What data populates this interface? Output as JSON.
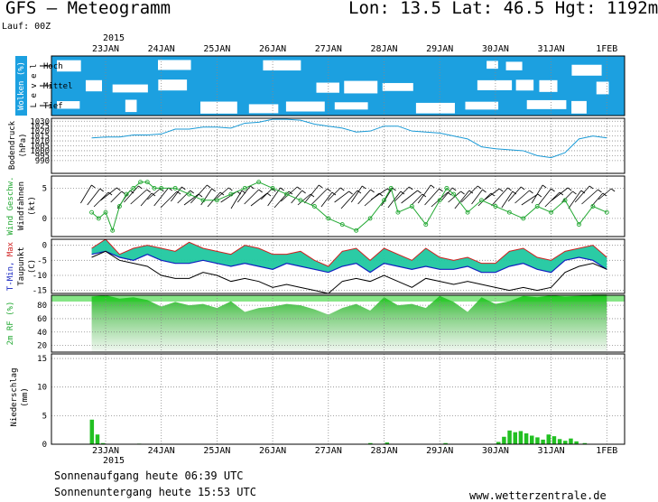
{
  "header": {
    "title": "GFS  —  Meteogramm",
    "coords": "Lon: 13.5  Lat: 46.5  Hgt: 1192m",
    "run": "Lauf: 00Z",
    "year_top": "2015",
    "year_bottom": "2015"
  },
  "footer": {
    "sunrise": "Sonnenaufgang heute 06:39 UTC",
    "sunset": "Sonnenuntergang heute 15:53 UTC",
    "credit": "www.wetterzentrale.de"
  },
  "colors": {
    "cloud_bg": "#1ca0e0",
    "pressure_line": "#1a9ad6",
    "wind_speed": "#22a832",
    "tmin": "#1020c0",
    "tmax": "#d02020",
    "dew": "#000000",
    "rh_fill": "#3cc83c",
    "precip": "#22c022"
  },
  "chart_data": [
    {
      "type": "heatmap",
      "panel": "clouds",
      "ylabel": "Wolken (%)",
      "side_label": "L e v e l",
      "levels": [
        "Hoch",
        "Mittel",
        "Tief"
      ],
      "x": [
        "23JAN",
        "24JAN",
        "25JAN",
        "26JAN",
        "27JAN",
        "28JAN",
        "29JAN",
        "30JAN",
        "31JAN",
        "1FEB"
      ]
    },
    {
      "type": "line",
      "panel": "pressure",
      "ylabel": "Bodendruck",
      "unit": "(hPa)",
      "x_days": [
        -0.25,
        0,
        0.25,
        0.5,
        0.75,
        1,
        1.25,
        1.5,
        1.75,
        2,
        2.25,
        2.5,
        2.75,
        3,
        3.25,
        3.5,
        3.75,
        4,
        4.25,
        4.5,
        4.75,
        5,
        5.25,
        5.5,
        5.75,
        6,
        6.25,
        6.5,
        6.75,
        7,
        7.25,
        7.5,
        7.75,
        8,
        8.25,
        8.5,
        8.75,
        9
      ],
      "y": [
        1013,
        1014,
        1014,
        1016,
        1016,
        1017,
        1022,
        1022,
        1024,
        1024,
        1023,
        1028,
        1029,
        1032,
        1032,
        1031,
        1027,
        1025,
        1023,
        1019,
        1020,
        1025,
        1025,
        1020,
        1019,
        1018,
        1015,
        1012,
        1004,
        1002,
        1001,
        1000,
        995,
        993,
        998,
        1012,
        1015,
        1013
      ],
      "ylim": [
        977,
        1033
      ],
      "yticks": [
        1030,
        1025,
        1020,
        1015,
        1010,
        1005,
        1000,
        995,
        990
      ]
    },
    {
      "type": "line",
      "panel": "wind",
      "ylabel": "Wind Geschw.",
      "ylabel2": "Windfahnen",
      "unit": "(kt)",
      "x_days": [
        -0.25,
        -0.125,
        0,
        0.125,
        0.25,
        0.375,
        0.5,
        0.625,
        0.75,
        0.875,
        1,
        1.25,
        1.5,
        1.75,
        2,
        2.25,
        2.5,
        2.75,
        3,
        3.25,
        3.5,
        3.75,
        4,
        4.25,
        4.5,
        4.75,
        5,
        5.125,
        5.25,
        5.5,
        5.75,
        6,
        6.125,
        6.25,
        6.5,
        6.75,
        7,
        7.25,
        7.5,
        7.75,
        8,
        8.25,
        8.5,
        8.75,
        9
      ],
      "y": [
        1,
        0,
        1,
        -2,
        2,
        4,
        5,
        6,
        6,
        5,
        5,
        5,
        4,
        3,
        3,
        4,
        5,
        6,
        5,
        4,
        3,
        2,
        0,
        -1,
        -2,
        0,
        3,
        5,
        1,
        2,
        -1,
        3,
        5,
        4,
        1,
        3,
        2,
        1,
        0,
        2,
        1,
        3,
        -1,
        2,
        1
      ],
      "ylim": [
        -3,
        7
      ],
      "yticks": [
        5,
        0
      ]
    },
    {
      "type": "area",
      "panel": "temperature",
      "ylabel": "T-Min, Max",
      "ylabel2": "Taupunkt",
      "unit": "(C)",
      "x_days": [
        -0.25,
        0,
        0.25,
        0.5,
        0.75,
        1,
        1.25,
        1.5,
        1.75,
        2,
        2.25,
        2.5,
        2.75,
        3,
        3.25,
        3.5,
        3.75,
        4,
        4.25,
        4.5,
        4.75,
        5,
        5.25,
        5.5,
        5.75,
        6,
        6.25,
        6.5,
        6.75,
        7,
        7.25,
        7.5,
        7.75,
        8,
        8.25,
        8.5,
        8.75,
        9
      ],
      "tmax": [
        -1,
        2,
        -3,
        -1,
        0,
        -1,
        -2,
        1,
        -1,
        -2,
        -3,
        0,
        -1,
        -3,
        -3,
        -2,
        -5,
        -7,
        -2,
        -1,
        -5,
        -1,
        -3,
        -5,
        -1,
        -4,
        -5,
        -4,
        -6,
        -6,
        -2,
        -1,
        -4,
        -5,
        -2,
        -1,
        0,
        -4
      ],
      "tmin": [
        -3,
        -2,
        -4,
        -5,
        -3,
        -5,
        -6,
        -6,
        -5,
        -6,
        -7,
        -6,
        -7,
        -8,
        -6,
        -7,
        -8,
        -9,
        -7,
        -6,
        -9,
        -6,
        -7,
        -8,
        -7,
        -8,
        -8,
        -7,
        -9,
        -9,
        -7,
        -6,
        -8,
        -9,
        -5,
        -4,
        -5,
        -8
      ],
      "dew": [
        -4,
        -2,
        -5,
        -6,
        -7,
        -10,
        -11,
        -11,
        -9,
        -10,
        -12,
        -11,
        -12,
        -14,
        -13,
        -14,
        -15,
        -16,
        -12,
        -11,
        -12,
        -10,
        -12,
        -14,
        -11,
        -12,
        -13,
        -12,
        -13,
        -14,
        -15,
        -14,
        -15,
        -14,
        -9,
        -7,
        -6,
        -8
      ],
      "ylim": [
        -16,
        2
      ],
      "yticks": [
        0,
        -5,
        -10,
        -15
      ]
    },
    {
      "type": "area",
      "panel": "humidity",
      "ylabel": "2m RF (%)",
      "x_days": [
        -0.25,
        0,
        0.25,
        0.5,
        0.75,
        1,
        1.25,
        1.5,
        1.75,
        2,
        2.25,
        2.5,
        2.75,
        3,
        3.25,
        3.5,
        3.75,
        4,
        4.25,
        4.5,
        4.75,
        5,
        5.25,
        5.5,
        5.75,
        6,
        6.25,
        6.5,
        6.75,
        7,
        7.25,
        7.5,
        7.75,
        8,
        8.25,
        8.5,
        8.75,
        9
      ],
      "y": [
        93,
        95,
        90,
        92,
        88,
        78,
        85,
        80,
        82,
        76,
        86,
        70,
        76,
        78,
        82,
        80,
        74,
        66,
        76,
        82,
        72,
        92,
        80,
        82,
        76,
        94,
        85,
        70,
        92,
        82,
        86,
        94,
        92,
        95,
        93,
        94,
        96,
        96
      ],
      "ylim": [
        10,
        95
      ],
      "yticks": [
        80,
        60,
        40,
        20
      ]
    },
    {
      "type": "bar",
      "panel": "precipitation",
      "ylabel": "Niederschlag",
      "unit": "(mm)",
      "x_days": [
        -0.25,
        -0.15,
        -0.05,
        0.6,
        4.75,
        5.05,
        6.1,
        7.05,
        7.15,
        7.25,
        7.35,
        7.45,
        7.55,
        7.65,
        7.75,
        7.85,
        7.95,
        8.05,
        8.15,
        8.25,
        8.35,
        8.45,
        8.6
      ],
      "y": [
        4.3,
        1.7,
        0.2,
        0.1,
        0.2,
        0.3,
        0.2,
        0.4,
        1.3,
        2.4,
        2.1,
        2.3,
        1.9,
        1.5,
        1.2,
        0.8,
        1.7,
        1.4,
        0.9,
        0.6,
        1.0,
        0.5,
        0.2
      ],
      "ylim": [
        0,
        15.8
      ],
      "yticks": [
        15,
        10,
        5,
        0
      ]
    }
  ],
  "x_axis_labels": [
    "23JAN",
    "24JAN",
    "25JAN",
    "26JAN",
    "27JAN",
    "28JAN",
    "29JAN",
    "30JAN",
    "31JAN",
    "1FEB"
  ]
}
